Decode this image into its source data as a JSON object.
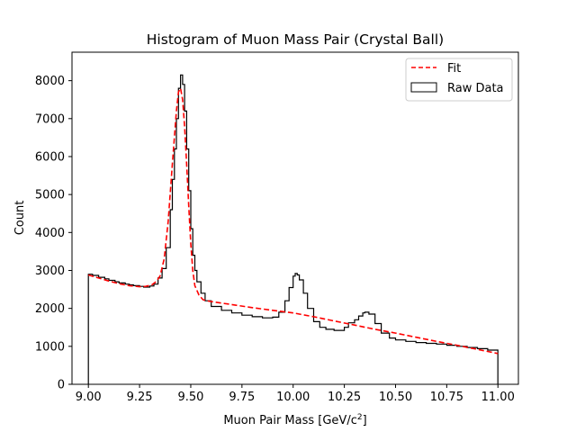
{
  "chart_data": {
    "type": "line",
    "title": "Histogram of Muon Mass Pair (Crystal Ball)",
    "xlabel": "Muon Pair Mass [GeV/c",
    "xlabel_sup": "2",
    "xlabel_end": "]",
    "ylabel": "Count",
    "xlim": [
      8.92,
      11.1
    ],
    "ylim": [
      0,
      8750
    ],
    "xticks": [
      9.0,
      9.25,
      9.5,
      9.75,
      10.0,
      10.25,
      10.5,
      10.75,
      11.0
    ],
    "xtick_labels": [
      "9.00",
      "9.25",
      "9.50",
      "9.75",
      "10.00",
      "10.25",
      "10.50",
      "10.75",
      "11.00"
    ],
    "yticks": [
      0,
      1000,
      2000,
      3000,
      4000,
      5000,
      6000,
      7000,
      8000
    ],
    "ytick_labels": [
      "0",
      "1000",
      "2000",
      "3000",
      "4000",
      "5000",
      "6000",
      "7000",
      "8000"
    ],
    "grid": false,
    "legend_position": "top-right",
    "series": [
      {
        "name": "Fit",
        "style": "dashed",
        "color": "#ff0000",
        "x": [
          9.0,
          9.05,
          9.1,
          9.15,
          9.2,
          9.25,
          9.28,
          9.31,
          9.33,
          9.35,
          9.37,
          9.39,
          9.41,
          9.43,
          9.44,
          9.45,
          9.46,
          9.47,
          9.48,
          9.49,
          9.5,
          9.51,
          9.52,
          9.54,
          9.56,
          9.58,
          9.6,
          9.7,
          9.8,
          9.9,
          10.0,
          10.1,
          10.2,
          10.3,
          10.4,
          10.5,
          10.6,
          10.7,
          10.8,
          10.9,
          11.0
        ],
        "y": [
          2880,
          2800,
          2720,
          2650,
          2600,
          2570,
          2580,
          2620,
          2700,
          2850,
          3300,
          4300,
          5800,
          7200,
          7700,
          7800,
          7500,
          6800,
          5800,
          4700,
          3700,
          3000,
          2600,
          2350,
          2230,
          2200,
          2180,
          2100,
          2020,
          1950,
          1880,
          1780,
          1670,
          1560,
          1450,
          1350,
          1240,
          1130,
          1030,
          920,
          810
        ]
      },
      {
        "name": "Raw Data",
        "style": "step",
        "color": "#000000",
        "x": [
          9.0,
          9.02,
          9.05,
          9.08,
          9.1,
          9.13,
          9.15,
          9.18,
          9.2,
          9.22,
          9.25,
          9.27,
          9.3,
          9.32,
          9.34,
          9.36,
          9.38,
          9.4,
          9.41,
          9.42,
          9.43,
          9.44,
          9.45,
          9.46,
          9.47,
          9.48,
          9.49,
          9.5,
          9.51,
          9.52,
          9.53,
          9.55,
          9.57,
          9.6,
          9.65,
          9.7,
          9.75,
          9.8,
          9.85,
          9.9,
          9.93,
          9.96,
          9.98,
          10.0,
          10.01,
          10.02,
          10.03,
          10.05,
          10.07,
          10.1,
          10.13,
          10.16,
          10.2,
          10.25,
          10.27,
          10.3,
          10.32,
          10.34,
          10.35,
          10.37,
          10.4,
          10.43,
          10.47,
          10.5,
          10.55,
          10.6,
          10.65,
          10.7,
          10.75,
          10.8,
          10.85,
          10.9,
          10.95,
          11.0
        ],
        "y": [
          2900,
          2870,
          2820,
          2780,
          2740,
          2700,
          2670,
          2640,
          2620,
          2600,
          2580,
          2560,
          2590,
          2640,
          2800,
          3050,
          3600,
          4600,
          5400,
          6200,
          7000,
          7800,
          8150,
          7900,
          7200,
          6200,
          5100,
          4100,
          3400,
          3000,
          2700,
          2400,
          2200,
          2050,
          1950,
          1880,
          1820,
          1780,
          1750,
          1770,
          1900,
          2200,
          2550,
          2850,
          2920,
          2880,
          2750,
          2400,
          2000,
          1650,
          1500,
          1450,
          1420,
          1500,
          1620,
          1700,
          1800,
          1880,
          1900,
          1850,
          1600,
          1350,
          1220,
          1170,
          1130,
          1100,
          1080,
          1060,
          1030,
          1000,
          970,
          940,
          900,
          880
        ]
      }
    ]
  }
}
